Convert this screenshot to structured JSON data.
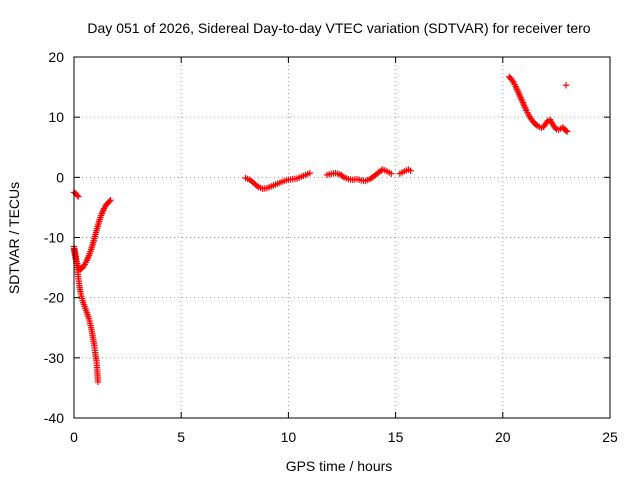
{
  "chart_data": {
    "type": "scatter",
    "title": "Day 051 of 2026, Sidereal Day-to-day VTEC variation (SDTVAR) for receiver tero",
    "xlabel": "GPS time / hours",
    "ylabel": "SDTVAR / TECUs",
    "xlim": [
      0,
      25
    ],
    "ylim": [
      -40,
      20
    ],
    "xticks": [
      0,
      5,
      10,
      15,
      20,
      25
    ],
    "yticks": [
      -40,
      -30,
      -20,
      -10,
      0,
      10,
      20
    ],
    "xtick_labels": [
      "0",
      "5",
      "10",
      "15",
      "20",
      "25"
    ],
    "ytick_labels": [
      "-40",
      "-30",
      "-20",
      "-10",
      "0",
      "10",
      "20"
    ],
    "grid": true,
    "marker": "plus",
    "color": "#ff0000",
    "segments": [
      [
        [
          0.0,
          -2.5
        ],
        [
          0.05,
          -2.6
        ],
        [
          0.1,
          -2.8
        ],
        [
          0.15,
          -3.0
        ],
        [
          0.2,
          -3.2
        ]
      ],
      [
        [
          0.0,
          -11.5
        ],
        [
          0.05,
          -12.5
        ],
        [
          0.1,
          -13.5
        ],
        [
          0.15,
          -14.3
        ],
        [
          0.2,
          -15.0
        ],
        [
          0.3,
          -15.3
        ],
        [
          0.4,
          -15.0
        ],
        [
          0.5,
          -14.5
        ],
        [
          0.6,
          -13.8
        ],
        [
          0.7,
          -13.0
        ],
        [
          0.8,
          -12.0
        ],
        [
          0.9,
          -10.8
        ],
        [
          1.0,
          -9.5
        ],
        [
          1.1,
          -8.2
        ],
        [
          1.2,
          -7.0
        ],
        [
          1.3,
          -6.0
        ],
        [
          1.4,
          -5.2
        ],
        [
          1.5,
          -4.6
        ],
        [
          1.6,
          -4.2
        ],
        [
          1.7,
          -3.8
        ]
      ],
      [
        [
          0.0,
          -12.0
        ],
        [
          0.05,
          -13.0
        ],
        [
          0.1,
          -14.0
        ],
        [
          0.15,
          -15.0
        ],
        [
          0.2,
          -16.5
        ],
        [
          0.25,
          -18.0
        ],
        [
          0.3,
          -19.0
        ],
        [
          0.4,
          -20.5
        ],
        [
          0.5,
          -21.5
        ],
        [
          0.6,
          -22.5
        ],
        [
          0.7,
          -23.5
        ],
        [
          0.8,
          -25.0
        ],
        [
          0.85,
          -26.0
        ],
        [
          0.9,
          -27.0
        ],
        [
          0.95,
          -28.0
        ],
        [
          1.0,
          -29.5
        ],
        [
          1.05,
          -30.5
        ],
        [
          1.08,
          -32.0
        ],
        [
          1.1,
          -33.0
        ],
        [
          1.12,
          -34.0
        ]
      ],
      [
        [
          8.0,
          -0.1
        ],
        [
          8.2,
          -0.4
        ],
        [
          8.4,
          -1.0
        ],
        [
          8.6,
          -1.6
        ],
        [
          8.8,
          -1.9
        ],
        [
          9.0,
          -1.8
        ],
        [
          9.2,
          -1.5
        ],
        [
          9.4,
          -1.2
        ],
        [
          9.6,
          -0.9
        ],
        [
          9.8,
          -0.6
        ],
        [
          10.0,
          -0.4
        ],
        [
          10.2,
          -0.3
        ],
        [
          10.4,
          -0.2
        ],
        [
          10.6,
          0.1
        ],
        [
          10.8,
          0.4
        ],
        [
          11.0,
          0.7
        ]
      ],
      [
        [
          11.8,
          0.4
        ],
        [
          12.0,
          0.6
        ],
        [
          12.2,
          0.7
        ],
        [
          12.4,
          0.5
        ],
        [
          12.6,
          0.0
        ],
        [
          12.8,
          -0.3
        ],
        [
          13.0,
          -0.4
        ],
        [
          13.2,
          -0.3
        ],
        [
          13.4,
          -0.5
        ],
        [
          13.6,
          -0.6
        ],
        [
          13.8,
          -0.3
        ],
        [
          14.0,
          0.2
        ],
        [
          14.2,
          0.8
        ],
        [
          14.4,
          1.3
        ],
        [
          14.6,
          1.0
        ],
        [
          14.8,
          0.6
        ]
      ],
      [
        [
          15.2,
          0.6
        ],
        [
          15.4,
          1.0
        ],
        [
          15.6,
          1.3
        ],
        [
          15.7,
          1.1
        ]
      ],
      [
        [
          20.3,
          16.7
        ],
        [
          20.4,
          16.3
        ],
        [
          20.5,
          15.8
        ],
        [
          20.6,
          15.1
        ],
        [
          20.7,
          14.3
        ],
        [
          20.8,
          13.5
        ],
        [
          20.9,
          12.7
        ],
        [
          21.0,
          11.9
        ],
        [
          21.1,
          11.1
        ],
        [
          21.2,
          10.4
        ],
        [
          21.3,
          9.8
        ],
        [
          21.4,
          9.3
        ],
        [
          21.5,
          8.9
        ],
        [
          21.6,
          8.6
        ],
        [
          21.7,
          8.4
        ],
        [
          21.8,
          8.2
        ],
        [
          21.9,
          8.4
        ],
        [
          22.0,
          8.9
        ],
        [
          22.1,
          9.4
        ],
        [
          22.2,
          9.6
        ],
        [
          22.3,
          9.0
        ],
        [
          22.4,
          8.4
        ],
        [
          22.5,
          8.0
        ],
        [
          22.6,
          7.9
        ],
        [
          22.7,
          8.1
        ],
        [
          22.8,
          8.3
        ],
        [
          22.9,
          7.9
        ],
        [
          23.0,
          7.6
        ]
      ],
      [
        [
          22.95,
          15.3
        ]
      ]
    ]
  }
}
